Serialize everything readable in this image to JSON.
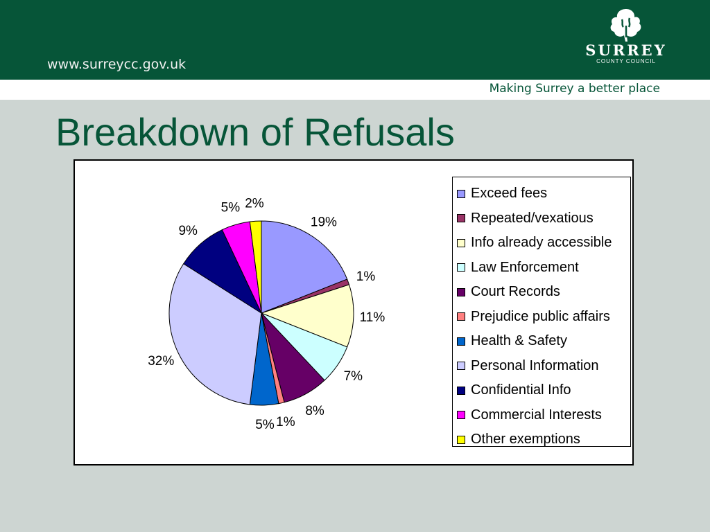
{
  "header": {
    "url": "www.surreycc.gov.uk",
    "logo_name": "SURREY",
    "logo_sub": "COUNTY COUNCIL",
    "tagline": "Making Surrey a better place"
  },
  "slide": {
    "title": "Breakdown of Refusals"
  },
  "chart_data": {
    "type": "pie",
    "title": "",
    "legend_position": "right",
    "categories": [
      "Exceed fees",
      "Repeated/vexatious",
      "Info already accessible",
      "Law Enforcement",
      "Court Records",
      "Prejudice  public affairs",
      "Health & Safety",
      "Personal Information",
      "Confidential Info",
      "Commercial Interests",
      "Other exemptions"
    ],
    "values": [
      19,
      1,
      11,
      7,
      8,
      1,
      5,
      32,
      9,
      5,
      2
    ],
    "labels": [
      "19%",
      "1%",
      "11%",
      "7%",
      "8%",
      "1%",
      "5%",
      "32%",
      "9%",
      "5%",
      "2%"
    ],
    "colors": [
      "#9999ff",
      "#993366",
      "#ffffcc",
      "#ccffff",
      "#660066",
      "#ff8080",
      "#0066cc",
      "#ccccff",
      "#000080",
      "#ff00ff",
      "#ffff00"
    ]
  }
}
